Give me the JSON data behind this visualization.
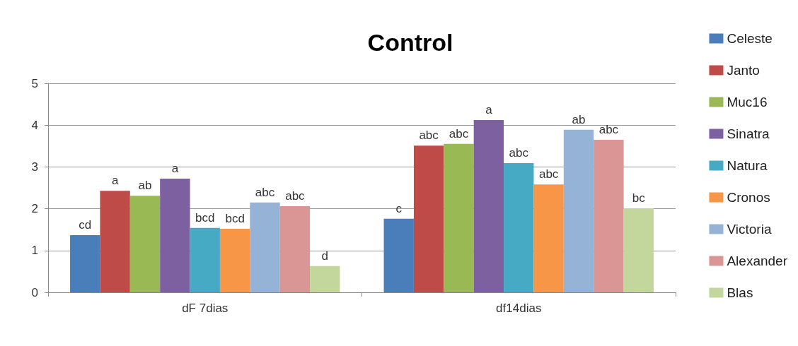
{
  "chart_data": {
    "type": "bar",
    "title": "Control",
    "categories": [
      "dF 7dias",
      "df14dias"
    ],
    "series": [
      {
        "name": "Celeste",
        "color": "#4a7ebb",
        "values": [
          1.37,
          1.76
        ],
        "value_labels": [
          "cd",
          "c"
        ]
      },
      {
        "name": "Janto",
        "color": "#be4b48",
        "values": [
          2.43,
          3.51
        ],
        "value_labels": [
          "a",
          "abc"
        ]
      },
      {
        "name": "Muc16",
        "color": "#98b954",
        "values": [
          2.31,
          3.55
        ],
        "value_labels": [
          "ab",
          "abc"
        ]
      },
      {
        "name": "Sinatra",
        "color": "#7d60a0",
        "values": [
          2.72,
          4.12
        ],
        "value_labels": [
          "a",
          "a"
        ]
      },
      {
        "name": "Natura",
        "color": "#46aac5",
        "values": [
          1.54,
          3.09
        ],
        "value_labels": [
          "bcd",
          "abc"
        ]
      },
      {
        "name": "Cronos",
        "color": "#f79646",
        "values": [
          1.52,
          2.58
        ],
        "value_labels": [
          "bcd",
          "abc"
        ]
      },
      {
        "name": "Victoria",
        "color": "#95b3d7",
        "values": [
          2.15,
          3.89
        ],
        "value_labels": [
          "abc",
          "ab"
        ]
      },
      {
        "name": "Alexander",
        "color": "#d99694",
        "values": [
          2.06,
          3.65
        ],
        "value_labels": [
          "abc",
          "abc"
        ]
      },
      {
        "name": "Blas",
        "color": "#c3d69b",
        "values": [
          0.63,
          2.01
        ],
        "value_labels": [
          "d",
          "bc"
        ]
      }
    ],
    "ylim": [
      0,
      5
    ],
    "yticks": [
      0,
      1,
      2,
      3,
      4,
      5
    ],
    "grid": "y",
    "legend": "right"
  }
}
